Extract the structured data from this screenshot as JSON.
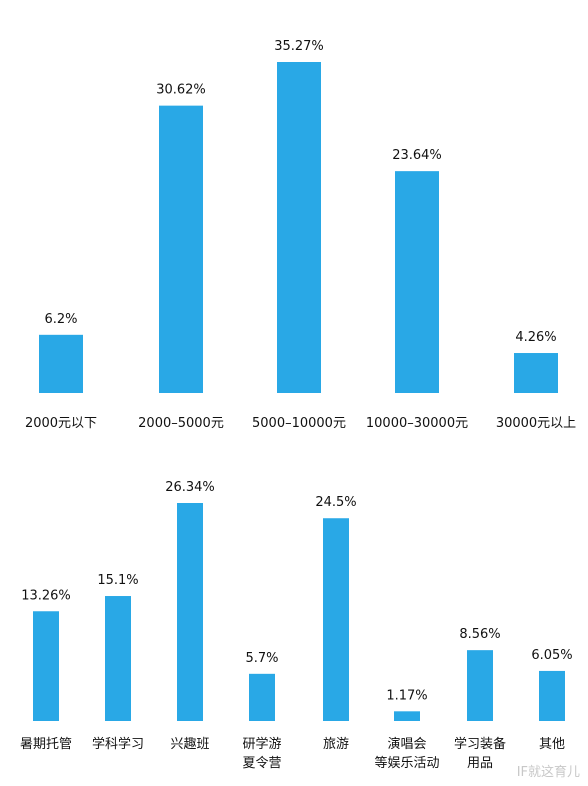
{
  "chart_data": [
    {
      "type": "bar",
      "categories": [
        "2000元以下",
        "2000–5000元",
        "5000–10000元",
        "10000–30000元",
        "30000元以上"
      ],
      "values": [
        6.2,
        30.62,
        35.27,
        23.64,
        4.26
      ],
      "labels": [
        "6.2%",
        "30.62%",
        "35.27%",
        "23.64%",
        "4.26%"
      ],
      "ylim": [
        0,
        40
      ],
      "grid": false,
      "color": "#29a8e6"
    },
    {
      "type": "bar",
      "categories": [
        "暑期托管",
        "学科学习",
        "兴趣班",
        "研学游\n夏令营",
        "旅游",
        "演唱会\n等娱乐活动",
        "学习装备\n用品",
        "其他"
      ],
      "values": [
        13.26,
        15.1,
        26.34,
        5.7,
        24.5,
        1.17,
        8.56,
        6.05
      ],
      "labels": [
        "13.26%",
        "15.1%",
        "26.34%",
        "5.7%",
        "24.5%",
        "1.17%",
        "8.56%",
        "6.05%"
      ],
      "ylim": [
        0,
        30
      ],
      "grid": false,
      "color": "#29a8e6"
    }
  ],
  "watermark": "IF就这育儿"
}
